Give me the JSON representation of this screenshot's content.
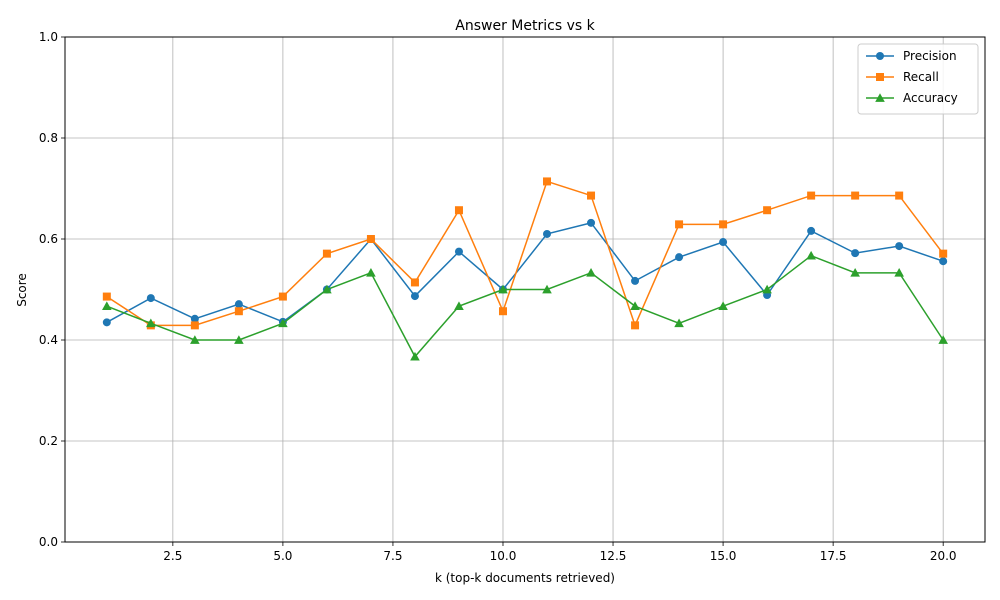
{
  "chart_data": {
    "type": "line",
    "title": "Answer Metrics vs k",
    "xlabel": "k (top-k documents retrieved)",
    "ylabel": "Score",
    "xlim": [
      0.05,
      20.95
    ],
    "ylim": [
      0,
      1
    ],
    "xticks": [
      2.5,
      5.0,
      7.5,
      10.0,
      12.5,
      15.0,
      17.5,
      20.0
    ],
    "xtick_labels": [
      "2.5",
      "5.0",
      "7.5",
      "10.0",
      "12.5",
      "15.0",
      "17.5",
      "20.0"
    ],
    "yticks": [
      0,
      0.2,
      0.4,
      0.6,
      0.8,
      1.0
    ],
    "ytick_labels": [
      "0.0",
      "0.2",
      "0.4",
      "0.6",
      "0.8",
      "1.0"
    ],
    "grid": true,
    "legend_position": "top-right",
    "x": [
      1,
      2,
      3,
      4,
      5,
      6,
      7,
      8,
      9,
      10,
      11,
      12,
      13,
      14,
      15,
      16,
      17,
      18,
      19,
      20
    ],
    "series": [
      {
        "name": "Precision",
        "color": "#1f77b4",
        "marker": "circle",
        "values": [
          0.435,
          0.483,
          0.442,
          0.471,
          0.436,
          0.5,
          0.6,
          0.487,
          0.575,
          0.5,
          0.61,
          0.632,
          0.517,
          0.564,
          0.594,
          0.489,
          0.616,
          0.572,
          0.586,
          0.556
        ]
      },
      {
        "name": "Recall",
        "color": "#ff7f0e",
        "marker": "square",
        "values": [
          0.486,
          0.429,
          0.429,
          0.457,
          0.486,
          0.571,
          0.6,
          0.514,
          0.657,
          0.457,
          0.714,
          0.686,
          0.429,
          0.629,
          0.629,
          0.657,
          0.686,
          0.686,
          0.686,
          0.571
        ]
      },
      {
        "name": "Accuracy",
        "color": "#2ca02c",
        "marker": "triangle",
        "values": [
          0.467,
          0.433,
          0.4,
          0.4,
          0.433,
          0.5,
          0.533,
          0.367,
          0.467,
          0.5,
          0.5,
          0.533,
          0.467,
          0.433,
          0.467,
          0.5,
          0.567,
          0.533,
          0.533,
          0.4
        ]
      }
    ]
  }
}
